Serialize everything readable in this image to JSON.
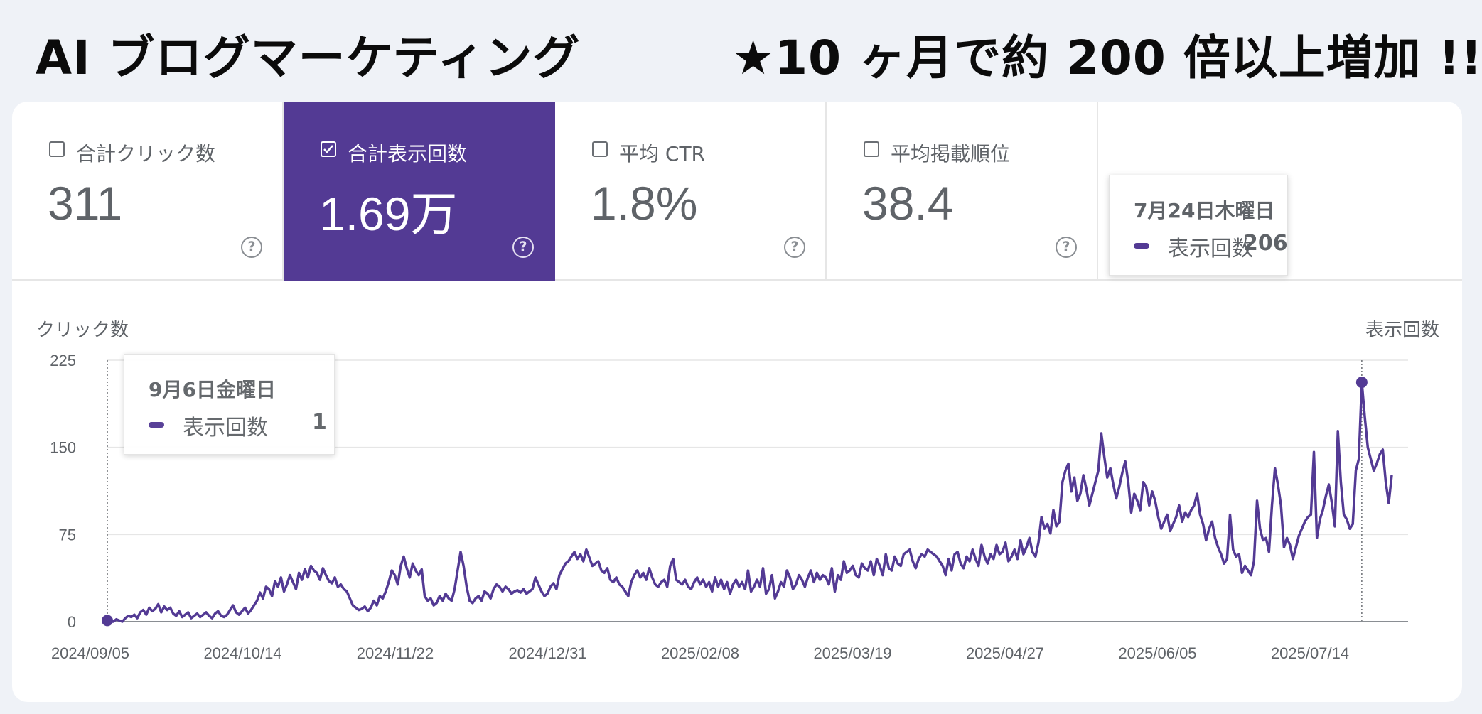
{
  "headline": {
    "left": "AI ブログマーケティング",
    "right": "★10 ヶ月で約 200 倍以上増加 !!"
  },
  "metrics": [
    {
      "label": "合計クリック数",
      "value": "311",
      "checked": false
    },
    {
      "label": "合計表示回数",
      "value": "1.69万",
      "checked": true
    },
    {
      "label": "平均 CTR",
      "value": "1.8%",
      "checked": false
    },
    {
      "label": "平均掲載順位",
      "value": "38.4",
      "checked": false
    }
  ],
  "colors": {
    "accent": "#533a94",
    "line": "#533a94"
  },
  "tooltips": [
    {
      "date": "7月24日木曜日",
      "series": "表示回数",
      "value": "206"
    },
    {
      "date": "9月6日金曜日",
      "series": "表示回数",
      "value": "1"
    }
  ],
  "chart_data": {
    "type": "line",
    "ylabel_left": "クリック数",
    "ylabel_right": "表示回数",
    "ylim": [
      0,
      225
    ],
    "yticks": [
      0,
      75,
      150,
      225
    ],
    "xticks": [
      "2024/09/05",
      "2024/10/14",
      "2024/11/22",
      "2024/12/31",
      "2025/02/08",
      "2025/03/19",
      "2025/04/27",
      "2025/06/05",
      "2025/07/14"
    ],
    "x_start": "2024/09/05",
    "x_end": "2025/07/27",
    "grid": true,
    "series": [
      {
        "name": "表示回数",
        "color": "#533a94",
        "values": [
          1,
          0,
          0,
          2,
          1,
          0,
          3,
          5,
          4,
          6,
          3,
          8,
          10,
          6,
          12,
          9,
          11,
          15,
          8,
          13,
          10,
          12,
          7,
          5,
          9,
          4,
          6,
          8,
          3,
          5,
          7,
          4,
          6,
          8,
          5,
          3,
          7,
          9,
          5,
          4,
          6,
          10,
          14,
          8,
          6,
          9,
          12,
          7,
          10,
          14,
          18,
          25,
          20,
          30,
          28,
          22,
          35,
          30,
          38,
          26,
          32,
          40,
          34,
          28,
          42,
          36,
          45,
          38,
          48,
          44,
          42,
          36,
          46,
          40,
          35,
          33,
          38,
          30,
          32,
          28,
          26,
          20,
          14,
          12,
          10,
          11,
          13,
          9,
          12,
          18,
          14,
          22,
          20,
          26,
          34,
          44,
          40,
          32,
          48,
          56,
          46,
          38,
          50,
          44,
          40,
          45,
          22,
          18,
          20,
          14,
          16,
          22,
          18,
          24,
          20,
          18,
          28,
          44,
          60,
          48,
          30,
          18,
          16,
          20,
          22,
          18,
          26,
          24,
          20,
          28,
          32,
          30,
          26,
          30,
          28,
          24,
          26,
          27,
          25,
          28,
          24,
          26,
          28,
          38,
          32,
          26,
          22,
          24,
          30,
          33,
          28,
          40,
          45,
          50,
          52,
          56,
          60,
          54,
          58,
          52,
          62,
          55,
          48,
          50,
          52,
          44,
          42,
          46,
          36,
          34,
          38,
          32,
          30,
          26,
          22,
          34,
          40,
          44,
          38,
          42,
          36,
          46,
          38,
          32,
          30,
          34,
          36,
          30,
          48,
          54,
          36,
          34,
          32,
          36,
          30,
          28,
          34,
          38,
          32,
          36,
          30,
          34,
          26,
          38,
          30,
          36,
          28,
          34,
          24,
          32,
          36,
          30,
          34,
          28,
          44,
          26,
          30,
          36,
          30,
          46,
          24,
          28,
          40,
          20,
          26,
          34,
          30,
          44,
          38,
          28,
          32,
          40,
          36,
          30,
          38,
          44,
          34,
          42,
          36,
          40,
          38,
          32,
          46,
          26,
          40,
          36,
          52,
          42,
          44,
          48,
          40,
          38,
          50,
          46,
          44,
          52,
          40,
          54,
          48,
          40,
          58,
          46,
          44,
          56,
          50,
          48,
          58,
          60,
          62,
          52,
          46,
          54,
          58,
          56,
          62,
          60,
          58,
          56,
          52,
          48,
          40,
          54,
          44,
          58,
          60,
          50,
          46,
          56,
          52,
          62,
          54,
          48,
          66,
          56,
          50,
          58,
          54,
          66,
          58,
          60,
          68,
          52,
          56,
          62,
          54,
          70,
          58,
          64,
          72,
          60,
          56,
          68,
          90,
          80,
          84,
          76,
          96,
          82,
          86,
          120,
          130,
          136,
          112,
          124,
          104,
          110,
          126,
          114,
          100,
          110,
          120,
          130,
          162,
          142,
          124,
          132,
          118,
          106,
          116,
          128,
          138,
          120,
          94,
          110,
          104,
          96,
          120,
          116,
          100,
          112,
          104,
          90,
          80,
          86,
          92,
          78,
          84,
          90,
          100,
          86,
          94,
          90,
          96,
          100,
          110,
          92,
          84,
          70,
          80,
          86,
          72,
          64,
          58,
          50,
          54,
          92,
          62,
          56,
          58,
          42,
          48,
          44,
          40,
          52,
          104,
          80,
          70,
          72,
          60,
          100,
          132,
          118,
          100,
          64,
          72,
          66,
          54,
          64,
          74,
          80,
          86,
          90,
          92,
          146,
          72,
          88,
          96,
          108,
          118,
          102,
          82,
          164,
          120,
          92,
          88,
          80,
          84,
          130,
          140,
          206,
          176,
          150,
          140,
          130,
          136,
          144,
          148,
          120,
          102,
          126
        ]
      }
    ]
  }
}
